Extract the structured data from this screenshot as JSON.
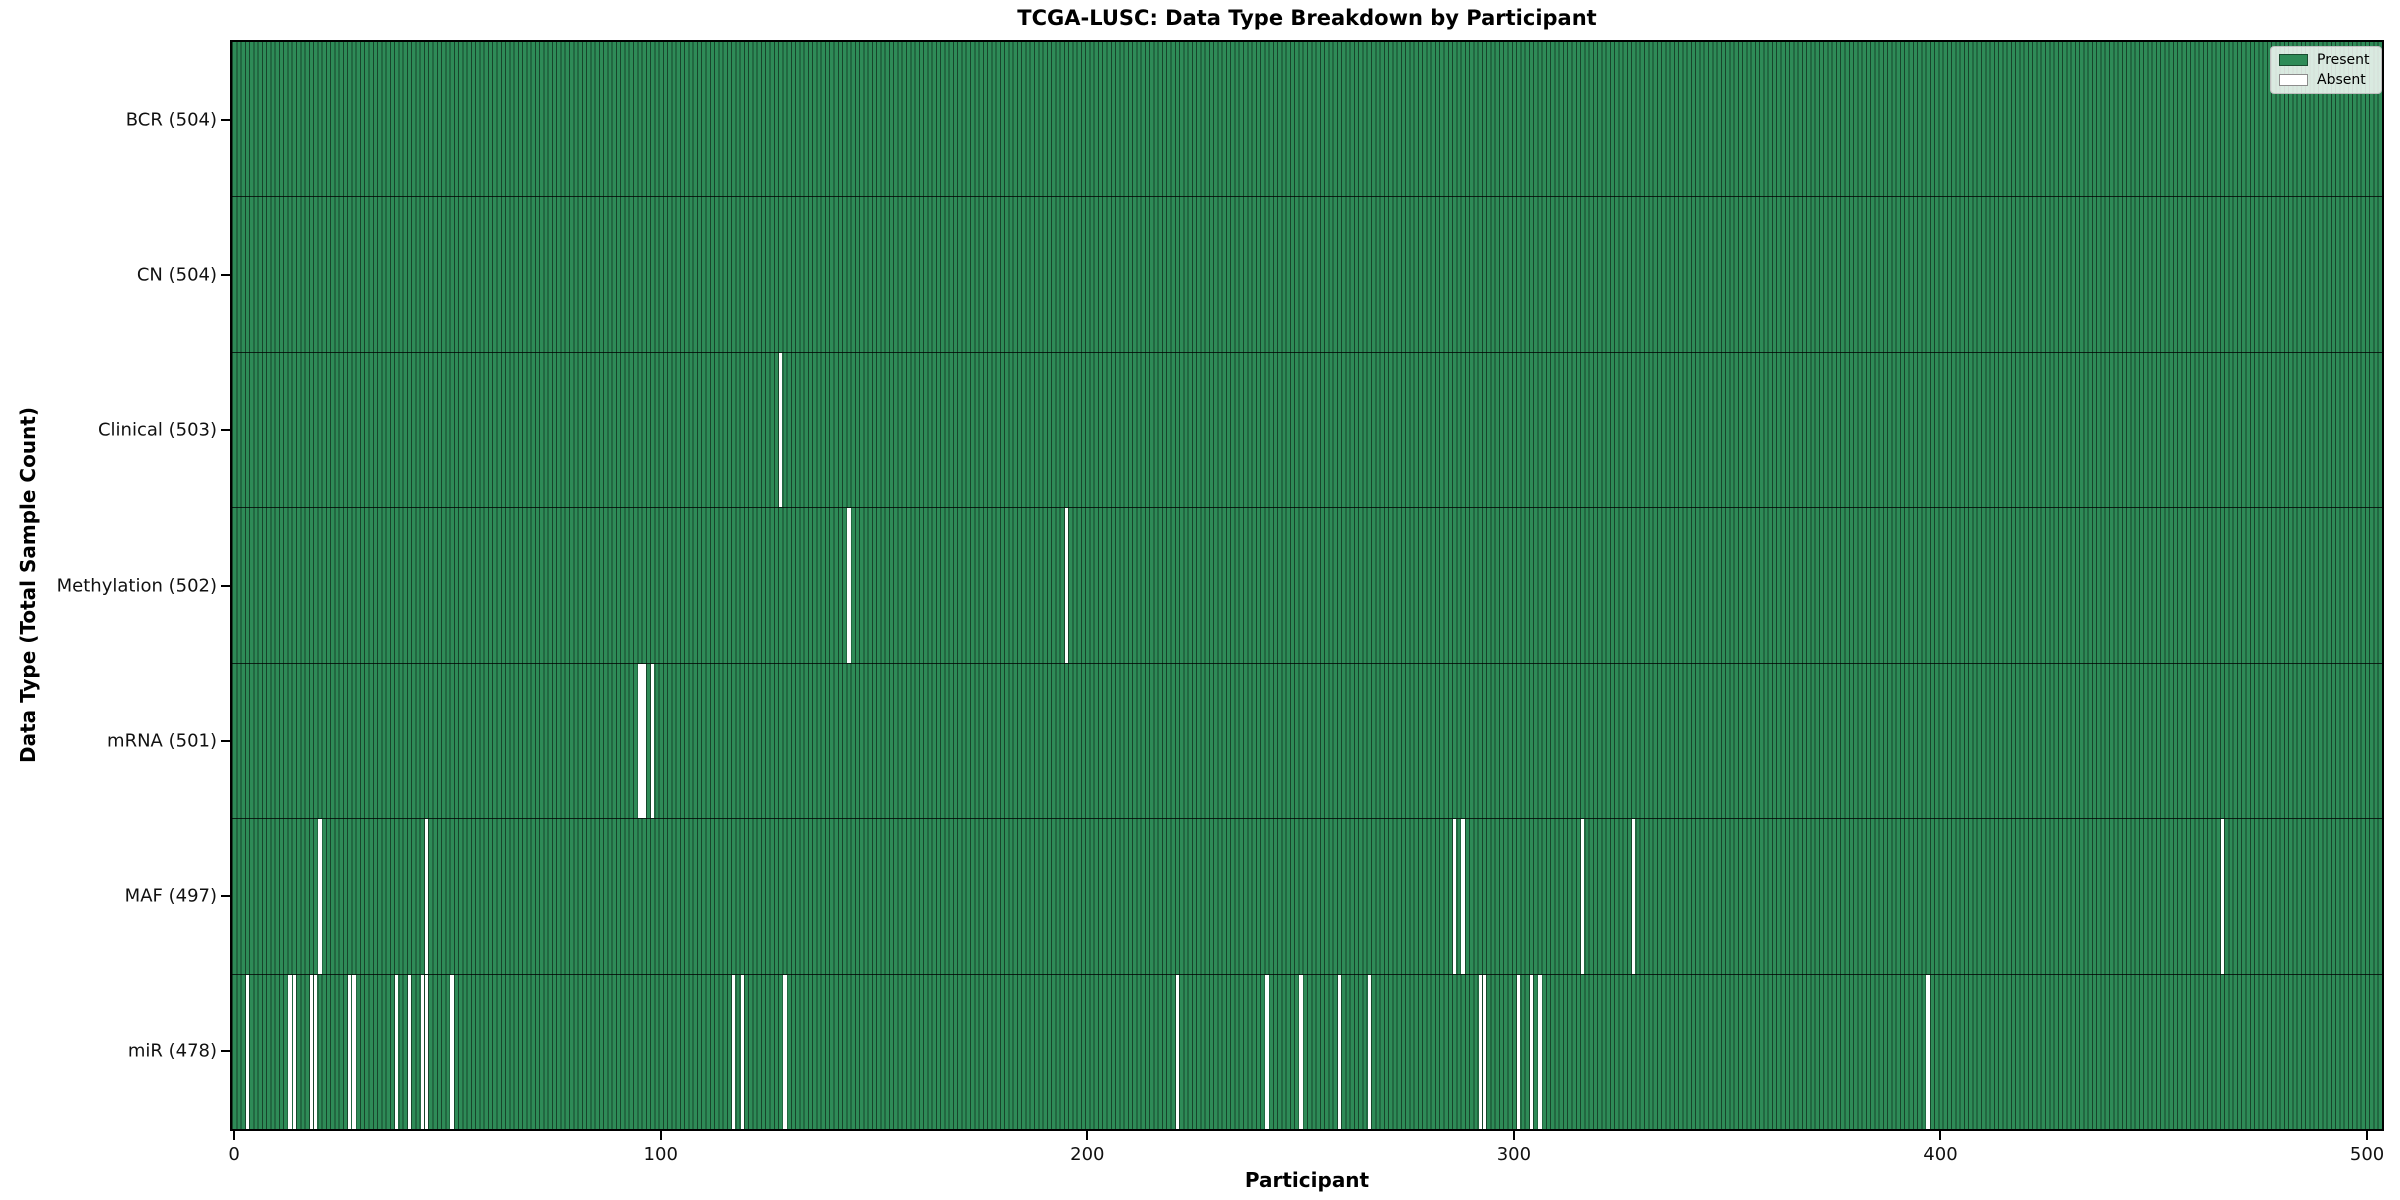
{
  "chart_data": {
    "type": "heatmap",
    "title": "TCGA-LUSC: Data Type Breakdown by Participant",
    "xlabel": "Participant",
    "ylabel": "Data Type (Total Sample Count)",
    "n_participants": 504,
    "x_ticks": [
      0,
      100,
      200,
      300,
      400,
      500
    ],
    "xlim": [
      -0.5,
      504.5
    ],
    "grid": false,
    "legend_position": "upper right",
    "legend": [
      {
        "label": "Present",
        "color": "#2e8b57"
      },
      {
        "label": "Absent",
        "color": "#ffffff"
      }
    ],
    "colors": {
      "present": "#2e8b57",
      "absent": "#ffffff",
      "bar_edge": "rgba(0,0,0,0.5)",
      "frame": "#000000"
    },
    "rows": [
      {
        "id": "bcr",
        "label": "BCR (504)",
        "data_type": "BCR",
        "total_count": 504,
        "absent_participants": []
      },
      {
        "id": "cn",
        "label": "CN (504)",
        "data_type": "CN",
        "total_count": 504,
        "absent_participants": []
      },
      {
        "id": "clinical",
        "label": "Clinical (503)",
        "data_type": "Clinical",
        "total_count": 503,
        "absent_participants": [
          128
        ]
      },
      {
        "id": "methylation",
        "label": "Methylation (502)",
        "data_type": "Methylation",
        "total_count": 502,
        "absent_participants": [
          144,
          195
        ]
      },
      {
        "id": "mrna",
        "label": "mRNA (501)",
        "data_type": "mRNA",
        "total_count": 501,
        "absent_participants": [
          95,
          96,
          98
        ]
      },
      {
        "id": "maf",
        "label": "MAF (497)",
        "data_type": "MAF",
        "total_count": 497,
        "absent_participants": [
          20,
          45,
          286,
          288,
          316,
          328,
          466
        ]
      },
      {
        "id": "mir",
        "label": "miR (478)",
        "data_type": "miR",
        "total_count": 478,
        "absent_participants": [
          3,
          13,
          14,
          18,
          19,
          27,
          28,
          38,
          41,
          44,
          45,
          51,
          117,
          119,
          129,
          221,
          242,
          250,
          259,
          266,
          292,
          293,
          301,
          304,
          306,
          397
        ]
      }
    ]
  }
}
